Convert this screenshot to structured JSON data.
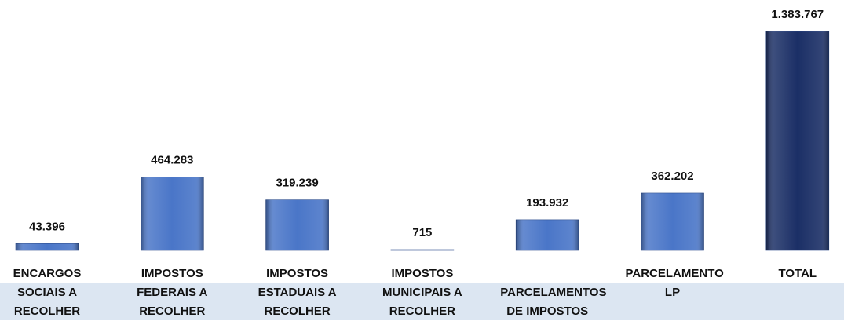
{
  "chart_data": {
    "type": "bar",
    "categories": [
      "ENCARGOS SOCIAIS A RECOLHER",
      "IMPOSTOS FEDERAIS A RECOLHER",
      "IMPOSTOS ESTADUAIS A RECOLHER",
      "IMPOSTOS MUNICIPAIS A RECOLHER",
      "PARCELAMENTOS DE IMPOSTOS",
      "PARCELAMENTO LP",
      "TOTAL"
    ],
    "values": [
      43396,
      464283,
      319239,
      715,
      193932,
      362202,
      1383767
    ],
    "value_labels": [
      "43.396",
      "464.283",
      "319.239",
      "715",
      "193.932",
      "362.202",
      "1.383.767"
    ],
    "colors": [
      "#4a76c8",
      "#4a76c8",
      "#4a76c8",
      "#4a76c8",
      "#4a76c8",
      "#4a76c8",
      "#1b2f66"
    ]
  }
}
